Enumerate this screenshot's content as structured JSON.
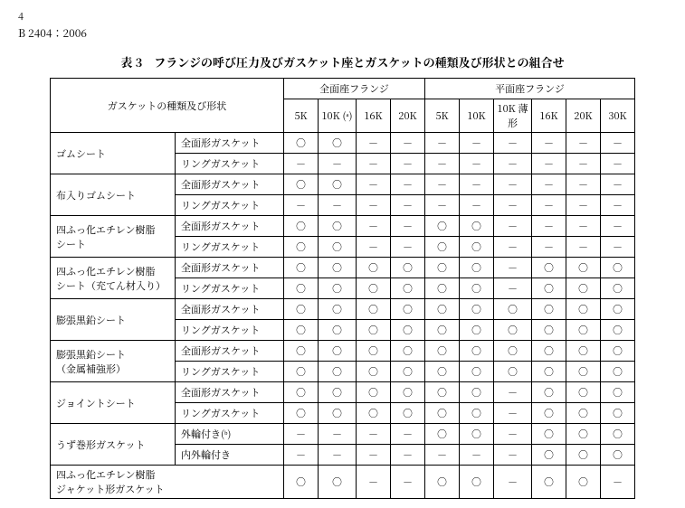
{
  "page_number": "4",
  "standard_number": "B 2404：2006",
  "table_title": "表 3　フランジの呼び圧力及びガスケット座とガスケットの種類及び形状との組合せ",
  "header": {
    "type_shape": "ガスケットの種類及び形状",
    "full_face": "全面座フランジ",
    "flat_face": "平面座フランジ",
    "cols_full": [
      "5K",
      "10K\n(ᵃ)",
      "16K",
      "20K"
    ],
    "cols_flat": [
      "5K",
      "10K",
      "10K\n薄形",
      "16K",
      "20K",
      "30K"
    ]
  },
  "symbols": {
    "o": "○",
    "d": "－"
  },
  "rows": [
    {
      "type": "ゴムシート",
      "shape": "全面形ガスケット",
      "v": [
        "o",
        "o",
        "d",
        "d",
        "d",
        "d",
        "d",
        "d",
        "d",
        "d"
      ]
    },
    {
      "shape": "リングガスケット",
      "v": [
        "d",
        "d",
        "d",
        "d",
        "d",
        "d",
        "d",
        "d",
        "d",
        "d"
      ]
    },
    {
      "type": "布入りゴムシート",
      "shape": "全面形ガスケット",
      "v": [
        "o",
        "o",
        "d",
        "d",
        "d",
        "d",
        "d",
        "d",
        "d",
        "d"
      ]
    },
    {
      "shape": "リングガスケット",
      "v": [
        "d",
        "d",
        "d",
        "d",
        "d",
        "d",
        "d",
        "d",
        "d",
        "d"
      ]
    },
    {
      "type": "四ふっ化エチレン樹脂\nシート",
      "shape": "全面形ガスケット",
      "v": [
        "o",
        "o",
        "d",
        "d",
        "o",
        "o",
        "d",
        "d",
        "d",
        "d"
      ]
    },
    {
      "shape": "リングガスケット",
      "v": [
        "o",
        "o",
        "d",
        "d",
        "o",
        "o",
        "d",
        "d",
        "d",
        "d"
      ]
    },
    {
      "type": "四ふっ化エチレン樹脂\nシート（充てん材入り）",
      "shape": "全面形ガスケット",
      "v": [
        "o",
        "o",
        "o",
        "o",
        "o",
        "o",
        "d",
        "o",
        "o",
        "o"
      ]
    },
    {
      "shape": "リングガスケット",
      "v": [
        "o",
        "o",
        "o",
        "o",
        "o",
        "o",
        "d",
        "o",
        "o",
        "o"
      ]
    },
    {
      "type": "膨張黒鉛シート",
      "shape": "全面形ガスケット",
      "v": [
        "o",
        "o",
        "o",
        "o",
        "o",
        "o",
        "o",
        "o",
        "o",
        "o"
      ]
    },
    {
      "shape": "リングガスケット",
      "v": [
        "o",
        "o",
        "o",
        "o",
        "o",
        "o",
        "o",
        "o",
        "o",
        "o"
      ]
    },
    {
      "type": "膨張黒鉛シート\n（金属補強形）",
      "shape": "全面形ガスケット",
      "v": [
        "o",
        "o",
        "o",
        "o",
        "o",
        "o",
        "o",
        "o",
        "o",
        "o"
      ]
    },
    {
      "shape": "リングガスケット",
      "v": [
        "o",
        "o",
        "o",
        "o",
        "o",
        "o",
        "o",
        "o",
        "o",
        "o"
      ]
    },
    {
      "type": "ジョイントシート",
      "shape": "全面形ガスケット",
      "v": [
        "o",
        "o",
        "o",
        "o",
        "o",
        "o",
        "d",
        "o",
        "o",
        "o"
      ]
    },
    {
      "shape": "リングガスケット",
      "v": [
        "o",
        "o",
        "o",
        "o",
        "o",
        "o",
        "d",
        "o",
        "o",
        "o"
      ]
    },
    {
      "type": "うず巻形ガスケット",
      "shape": "外輪付き(ᵇ)",
      "v": [
        "d",
        "d",
        "d",
        "d",
        "o",
        "o",
        "d",
        "o",
        "o",
        "o"
      ]
    },
    {
      "shape": "内外輪付き",
      "v": [
        "d",
        "d",
        "d",
        "d",
        "d",
        "d",
        "d",
        "o",
        "o",
        "o"
      ]
    },
    {
      "type": "四ふっ化エチレン樹脂\nジャケット形ガスケット",
      "colspan2": true,
      "v": [
        "o",
        "o",
        "d",
        "d",
        "o",
        "o",
        "d",
        "o",
        "o",
        "d"
      ]
    }
  ]
}
